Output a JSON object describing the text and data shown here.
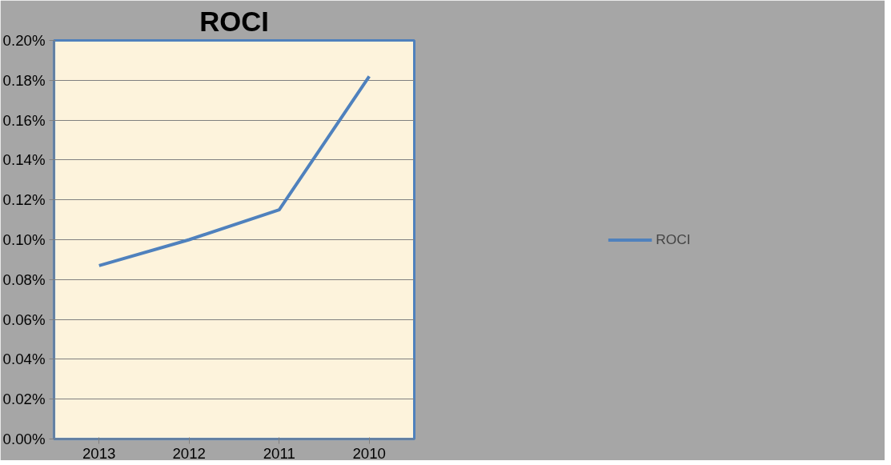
{
  "chart_data": {
    "type": "line",
    "title": "ROCI",
    "categories": [
      "2013",
      "2012",
      "2011",
      "2010"
    ],
    "series": [
      {
        "name": "ROCI",
        "color": "#4f81bd",
        "values": [
          0.087,
          0.1,
          0.115,
          0.182
        ]
      }
    ],
    "ylim": [
      0,
      0.2
    ],
    "yticks": [
      {
        "value": 0,
        "label": "0.00%"
      },
      {
        "value": 0.02,
        "label": "0.02%"
      },
      {
        "value": 0.04,
        "label": "0.04%"
      },
      {
        "value": 0.06,
        "label": "0.06%"
      },
      {
        "value": 0.08,
        "label": "0.08%"
      },
      {
        "value": 0.1,
        "label": "0.10%"
      },
      {
        "value": 0.12,
        "label": "0.12%"
      },
      {
        "value": 0.14,
        "label": "0.14%"
      },
      {
        "value": 0.16,
        "label": "0.16%"
      },
      {
        "value": 0.18,
        "label": "0.18%"
      },
      {
        "value": 0.2,
        "label": "0.20%"
      }
    ],
    "grid": "y",
    "legend": "right",
    "marker": "none",
    "line_style": "solid"
  }
}
